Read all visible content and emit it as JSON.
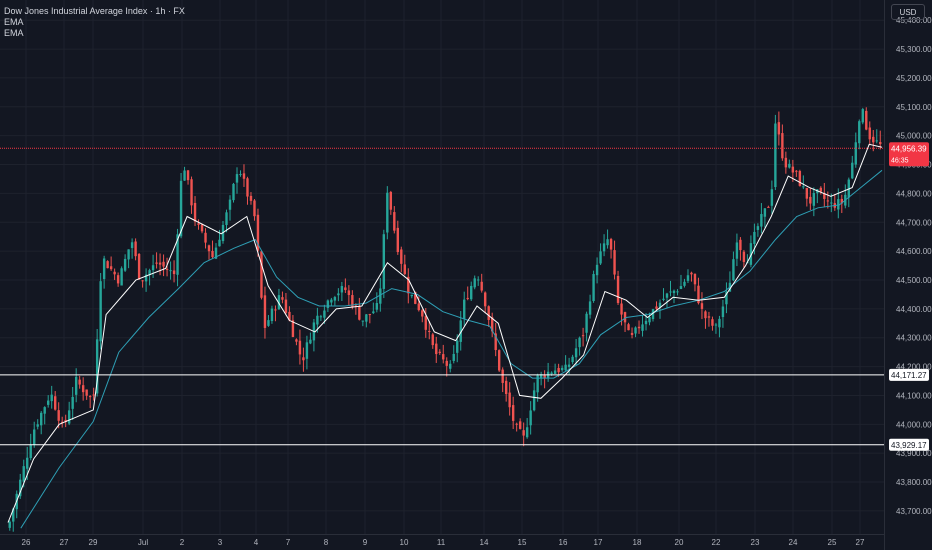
{
  "legend": {
    "title": "Dow Jones Industrial Average Index · 1h · FX",
    "ema1": "EMA",
    "ema2": "EMA"
  },
  "currency_label": "USD",
  "chart_data": {
    "type": "candlestick",
    "title": "Dow Jones Industrial Average Index · 1h · FX",
    "ylim": [
      43620,
      45470
    ],
    "y_ticks": [
      {
        "value": 45400,
        "label": "45,400.00"
      },
      {
        "value": 45300,
        "label": "45,300.00"
      },
      {
        "value": 45200,
        "label": "45,200.00"
      },
      {
        "value": 45100,
        "label": "45,100.00"
      },
      {
        "value": 45000,
        "label": "45,000.00"
      },
      {
        "value": 44900,
        "label": "44,900.00"
      },
      {
        "value": 44800,
        "label": "44,800.00"
      },
      {
        "value": 44700,
        "label": "44,700.00"
      },
      {
        "value": 44600,
        "label": "44,600.00"
      },
      {
        "value": 44500,
        "label": "44,500.00"
      },
      {
        "value": 44400,
        "label": "44,400.00"
      },
      {
        "value": 44300,
        "label": "44,300.00"
      },
      {
        "value": 44200,
        "label": "44,200.00"
      },
      {
        "value": 44100,
        "label": "44,100.00"
      },
      {
        "value": 44000,
        "label": "44,000.00"
      },
      {
        "value": 43900,
        "label": "43,900.00"
      },
      {
        "value": 43800,
        "label": "43,800.00"
      },
      {
        "value": 43700,
        "label": "43,700.00"
      }
    ],
    "x_labels": [
      "26",
      "27",
      "29",
      "Jul",
      "2",
      "3",
      "4",
      "7",
      "8",
      "9",
      "10",
      "11",
      "14",
      "15",
      "16",
      "17",
      "18",
      "20",
      "22",
      "23",
      "24",
      "25",
      "27"
    ],
    "horizontal_lines": [
      {
        "value": 44171.27,
        "label": "44,171.27",
        "color": "#ffffff"
      },
      {
        "value": 43929.17,
        "label": "43,929.17",
        "color": "#ffffff"
      }
    ],
    "current_price": {
      "value": 44956.39,
      "label": "44,956.39",
      "countdown": "46:35",
      "color": "#f23645"
    },
    "series_path": [
      [
        0.0,
        43640
      ],
      [
        0.6,
        43980
      ],
      [
        1.0,
        44110
      ],
      [
        1.3,
        43980
      ],
      [
        1.6,
        44150
      ],
      [
        2.0,
        44080
      ],
      [
        2.2,
        44580
      ],
      [
        2.6,
        44500
      ],
      [
        2.9,
        44640
      ],
      [
        3.1,
        44500
      ],
      [
        3.5,
        44560
      ],
      [
        3.9,
        44520
      ],
      [
        4.1,
        44920
      ],
      [
        4.4,
        44700
      ],
      [
        4.8,
        44580
      ],
      [
        5.2,
        44760
      ],
      [
        5.4,
        44900
      ],
      [
        5.8,
        44710
      ],
      [
        6.0,
        44330
      ],
      [
        6.4,
        44450
      ],
      [
        6.9,
        44220
      ],
      [
        7.2,
        44360
      ],
      [
        7.6,
        44450
      ],
      [
        7.9,
        44470
      ],
      [
        8.3,
        44360
      ],
      [
        8.7,
        44410
      ],
      [
        8.9,
        44820
      ],
      [
        9.1,
        44640
      ],
      [
        9.4,
        44460
      ],
      [
        9.7,
        44390
      ],
      [
        10.0,
        44250
      ],
      [
        10.4,
        44190
      ],
      [
        10.7,
        44420
      ],
      [
        11.0,
        44530
      ],
      [
        11.2,
        44420
      ],
      [
        11.6,
        44140
      ],
      [
        11.9,
        43990
      ],
      [
        12.1,
        43950
      ],
      [
        12.4,
        44160
      ],
      [
        12.8,
        44190
      ],
      [
        13.1,
        44190
      ],
      [
        13.5,
        44320
      ],
      [
        13.8,
        44560
      ],
      [
        14.1,
        44650
      ],
      [
        14.3,
        44420
      ],
      [
        14.6,
        44290
      ],
      [
        14.8,
        44340
      ],
      [
        15.1,
        44390
      ],
      [
        15.4,
        44440
      ],
      [
        15.6,
        44460
      ],
      [
        15.8,
        44480
      ],
      [
        16.0,
        44530
      ],
      [
        16.3,
        44380
      ],
      [
        16.6,
        44330
      ],
      [
        16.9,
        44470
      ],
      [
        17.1,
        44650
      ],
      [
        17.3,
        44560
      ],
      [
        17.6,
        44690
      ],
      [
        17.9,
        44780
      ],
      [
        18.0,
        45050
      ],
      [
        18.2,
        44910
      ],
      [
        18.5,
        44860
      ],
      [
        18.8,
        44770
      ],
      [
        19.0,
        44800
      ],
      [
        19.3,
        44760
      ],
      [
        19.6,
        44770
      ],
      [
        19.8,
        44900
      ],
      [
        20.0,
        45100
      ],
      [
        20.2,
        45000
      ],
      [
        20.5,
        44960
      ]
    ],
    "ema_fast": [
      [
        0.0,
        43660
      ],
      [
        0.6,
        43880
      ],
      [
        1.2,
        44000
      ],
      [
        2.0,
        44050
      ],
      [
        2.3,
        44380
      ],
      [
        3.0,
        44500
      ],
      [
        3.7,
        44540
      ],
      [
        4.2,
        44720
      ],
      [
        5.0,
        44660
      ],
      [
        5.6,
        44720
      ],
      [
        6.1,
        44480
      ],
      [
        6.6,
        44360
      ],
      [
        7.2,
        44320
      ],
      [
        7.7,
        44400
      ],
      [
        8.3,
        44410
      ],
      [
        8.9,
        44560
      ],
      [
        9.4,
        44500
      ],
      [
        10.0,
        44320
      ],
      [
        10.5,
        44290
      ],
      [
        11.0,
        44410
      ],
      [
        11.5,
        44350
      ],
      [
        12.0,
        44100
      ],
      [
        12.5,
        44090
      ],
      [
        13.0,
        44160
      ],
      [
        13.5,
        44240
      ],
      [
        14.0,
        44460
      ],
      [
        14.5,
        44430
      ],
      [
        15.0,
        44370
      ],
      [
        15.6,
        44440
      ],
      [
        16.2,
        44430
      ],
      [
        16.8,
        44440
      ],
      [
        17.3,
        44550
      ],
      [
        17.9,
        44720
      ],
      [
        18.3,
        44860
      ],
      [
        18.8,
        44820
      ],
      [
        19.3,
        44790
      ],
      [
        19.8,
        44820
      ],
      [
        20.2,
        44970
      ],
      [
        20.5,
        44960
      ]
    ],
    "ema_slow": [
      [
        0.3,
        43640
      ],
      [
        1.2,
        43850
      ],
      [
        2.0,
        44010
      ],
      [
        2.6,
        44250
      ],
      [
        3.3,
        44370
      ],
      [
        4.0,
        44470
      ],
      [
        4.6,
        44560
      ],
      [
        5.3,
        44610
      ],
      [
        5.8,
        44640
      ],
      [
        6.3,
        44510
      ],
      [
        6.8,
        44440
      ],
      [
        7.3,
        44410
      ],
      [
        7.9,
        44410
      ],
      [
        8.4,
        44420
      ],
      [
        9.0,
        44470
      ],
      [
        9.6,
        44450
      ],
      [
        10.2,
        44390
      ],
      [
        10.8,
        44360
      ],
      [
        11.3,
        44340
      ],
      [
        11.8,
        44210
      ],
      [
        12.3,
        44160
      ],
      [
        12.8,
        44160
      ],
      [
        13.4,
        44210
      ],
      [
        13.9,
        44310
      ],
      [
        14.5,
        44370
      ],
      [
        15.0,
        44380
      ],
      [
        15.6,
        44410
      ],
      [
        16.2,
        44430
      ],
      [
        16.8,
        44460
      ],
      [
        17.4,
        44530
      ],
      [
        18.0,
        44640
      ],
      [
        18.5,
        44720
      ],
      [
        19.0,
        44750
      ],
      [
        19.5,
        44760
      ],
      [
        20.0,
        44820
      ],
      [
        20.5,
        44880
      ]
    ],
    "grid": true,
    "colors": {
      "up": "#26a69a",
      "down": "#ef5350",
      "background": "#131722",
      "grid": "#1e222d",
      "ema_fast": "#ffffff",
      "ema_slow": "#2e9fb5"
    }
  }
}
